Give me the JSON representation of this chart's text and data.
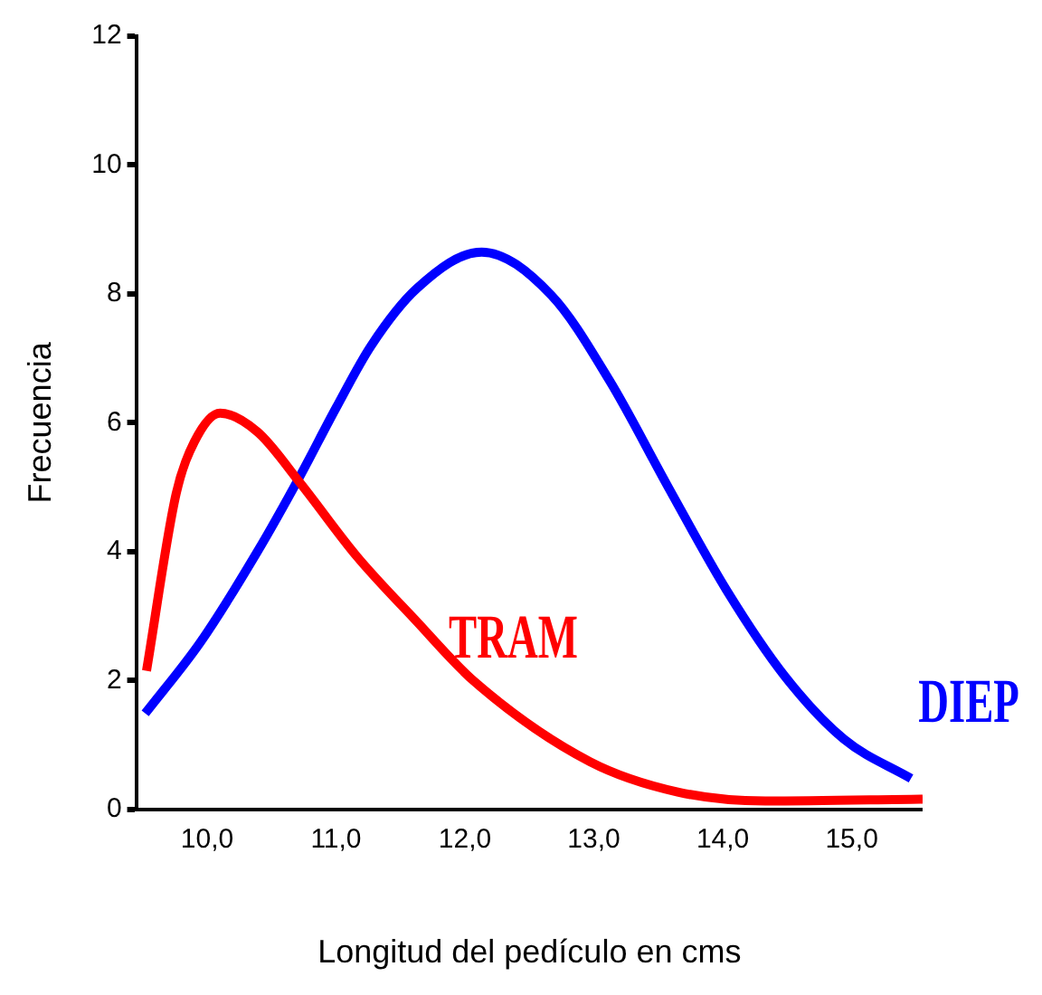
{
  "chart_data": {
    "type": "line",
    "xlabel": "Longitud del pedículo en cms",
    "ylabel": "Frecuencia",
    "xlim": [
      9.45,
      15.55
    ],
    "ylim": [
      0,
      12
    ],
    "xticks": [
      {
        "value": 10,
        "label": "10,0"
      },
      {
        "value": 11,
        "label": "11,0"
      },
      {
        "value": 12,
        "label": "12,0"
      },
      {
        "value": 13,
        "label": "13,0"
      },
      {
        "value": 14,
        "label": "14,0"
      },
      {
        "value": 15,
        "label": "15,0"
      }
    ],
    "yticks": [
      0,
      2,
      4,
      6,
      8,
      10,
      12
    ],
    "grid": false,
    "legend": false,
    "marker": "none",
    "line_style": "solid",
    "series": [
      {
        "name": "TRAM",
        "color": "#ff0000",
        "x": [
          9.53,
          9.76,
          9.9,
          10.1,
          10.39,
          10.72,
          11.16,
          11.61,
          12.07,
          12.97,
          13.65,
          14.33,
          15.55
        ],
        "values": [
          2.15,
          4.9,
          5.7,
          6.15,
          5.86,
          5.07,
          3.93,
          2.95,
          1.99,
          0.74,
          0.27,
          0.13,
          0.16
        ]
      },
      {
        "name": "DIEP",
        "color": "#0000ff",
        "x": [
          9.52,
          9.95,
          10.39,
          10.72,
          11.0,
          11.27,
          11.63,
          12.13,
          12.67,
          13.12,
          13.58,
          14.03,
          14.48,
          14.94,
          15.46
        ],
        "values": [
          1.49,
          2.6,
          4.0,
          5.17,
          6.23,
          7.19,
          8.09,
          8.65,
          7.98,
          6.66,
          4.99,
          3.4,
          2.07,
          1.09,
          0.48
        ]
      }
    ]
  }
}
